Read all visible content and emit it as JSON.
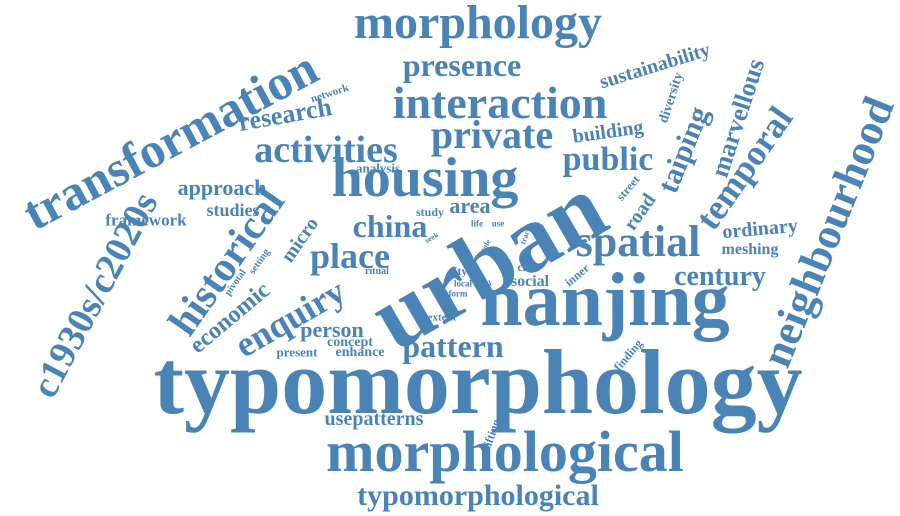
{
  "color": "#4a83b6",
  "words": {
    "typomorphology": "typomorphology",
    "urban": "urban",
    "nanjing": "nanjing",
    "morphological": "morphological",
    "housing": "housing",
    "morphology": "morphology",
    "interaction": "interaction",
    "transformation": "transformation",
    "neighbourhood": "neighbourhood",
    "spatial": "spatial",
    "historical": "historical",
    "c1930s_c2020s": "c1930s/c2020s",
    "private": "private",
    "activities": "activities",
    "public": "public",
    "place": "place",
    "enquiry": "enquiry",
    "temporal": "temporal",
    "pattern": "pattern",
    "typomorphological": "typomorphological",
    "presence": "presence",
    "century": "century",
    "china": "china",
    "taiping": "taiping",
    "research": "research",
    "marvellous": "marvellous",
    "economic": "economic",
    "person": "person",
    "approach": "approach",
    "sustainability": "sustainability",
    "building": "building",
    "area": "area",
    "usepatterns": "usepatterns",
    "ordinary": "ordinary",
    "studies": "studies",
    "framework": "framework",
    "micro": "micro",
    "road": "road",
    "social": "social",
    "meshing": "meshing",
    "concept": "concept",
    "enhance": "enhance",
    "diversity": "diversity",
    "analysis": "analysis",
    "present": "present",
    "network": "network",
    "shifting": "shifting",
    "finding": "finding",
    "study": "study",
    "city": "city",
    "street": "street",
    "case": "case",
    "inner": "inner",
    "extent": "extent",
    "pivotal": "pivotal",
    "setting": "setting",
    "ritual": "ritual",
    "local": "local",
    "form": "form",
    "vital": "vital",
    "life": "life",
    "use": "use",
    "seek": "seek",
    "trace": "trace",
    "role": "role"
  }
}
